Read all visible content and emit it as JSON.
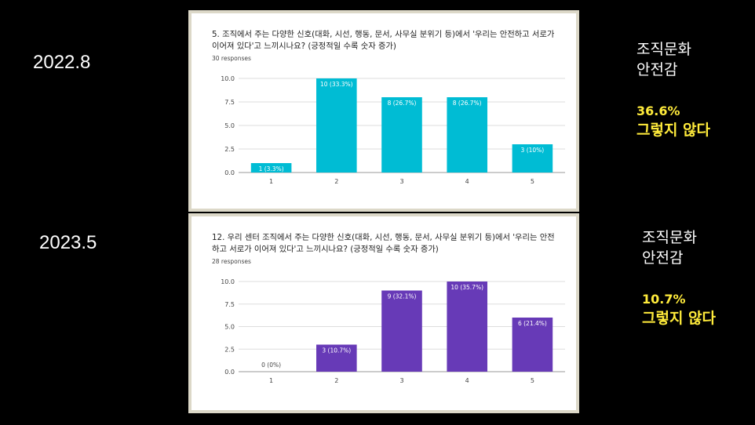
{
  "slides": [
    {
      "date": "2022.8",
      "side_title_line1": "조직문화",
      "side_title_line2": "안전감",
      "highlight_pct": "36.6%",
      "highlight_text": "그렇지 않다",
      "panel_title": "5. 조직에서 주는 다양한 신호(대화, 시선, 행동, 문서, 사무실 분위기 등)에서 '우리는 안전하고 서로가 이어져 있다'고 느끼시나요? (긍정적일 수록 숫자 증가)",
      "responses": "30 responses"
    },
    {
      "date": "2023.5",
      "side_title_line1": "조직문화",
      "side_title_line2": "안전감",
      "highlight_pct": "10.7%",
      "highlight_text": "그렇지 않다",
      "panel_title": "12. 우리 센터 조직에서 주는 다양한 신호(대화, 시선, 행동, 문서, 사무실 분위기 등)에서 '우리는 안전하고 서로가 이어져 있다'고 느끼시나요? (긍정적일 수록 숫자 증가)",
      "responses": "28 responses"
    }
  ],
  "chart_data": [
    {
      "type": "bar",
      "categories": [
        "1",
        "2",
        "3",
        "4",
        "5"
      ],
      "values": [
        1,
        10,
        8,
        8,
        3
      ],
      "data_labels": [
        "1 (3.3%)",
        "10 (33.3%)",
        "8 (26.7%)",
        "8 (26.7%)",
        "3 (10%)"
      ],
      "yticks": [
        "0.0",
        "2.5",
        "5.0",
        "7.5",
        "10.0"
      ],
      "ylim": [
        0,
        10
      ],
      "color": "#00bcd4",
      "grid": true
    },
    {
      "type": "bar",
      "categories": [
        "1",
        "2",
        "3",
        "4",
        "5"
      ],
      "values": [
        0,
        3,
        9,
        10,
        6
      ],
      "data_labels": [
        "0 (0%)",
        "3 (10.7%)",
        "9 (32.1%)",
        "10 (35.7%)",
        "6 (21.4%)"
      ],
      "yticks": [
        "0.0",
        "2.5",
        "5.0",
        "7.5",
        "10.0"
      ],
      "ylim": [
        0,
        10
      ],
      "color": "#673ab7",
      "grid": true
    }
  ]
}
